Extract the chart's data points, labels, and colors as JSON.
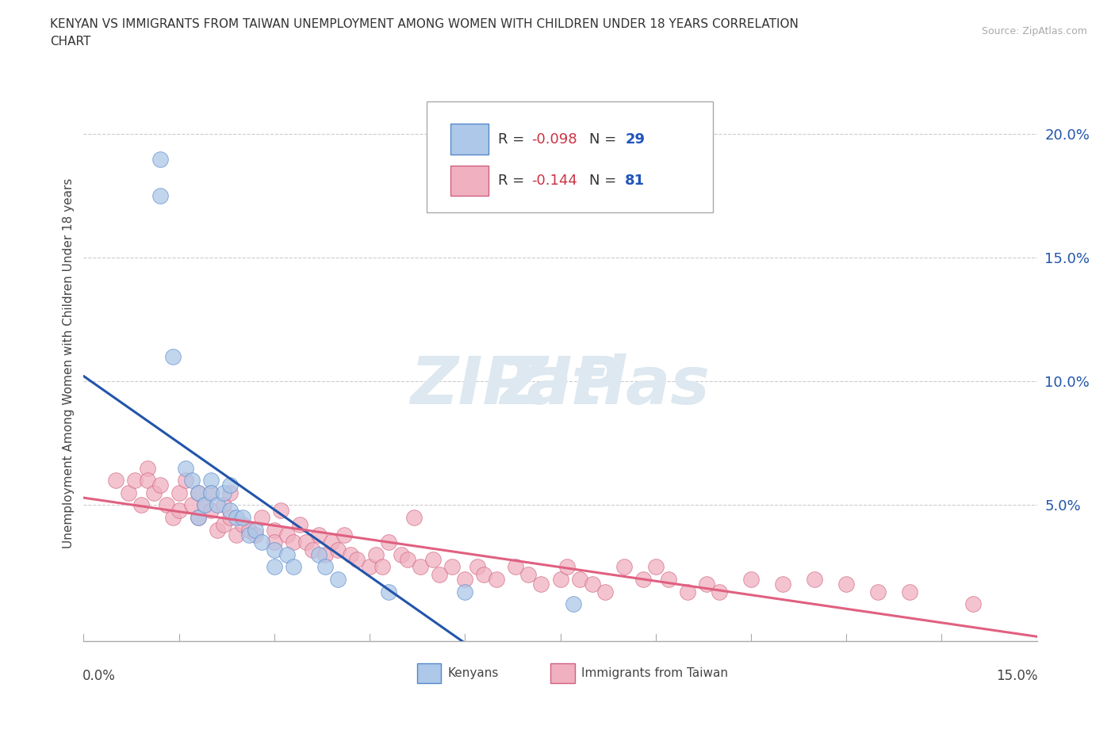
{
  "title_line1": "KENYAN VS IMMIGRANTS FROM TAIWAN UNEMPLOYMENT AMONG WOMEN WITH CHILDREN UNDER 18 YEARS CORRELATION",
  "title_line2": "CHART",
  "source": "Source: ZipAtlas.com",
  "xlabel_bottom_left": "0.0%",
  "xlabel_bottom_right": "15.0%",
  "ylabel": "Unemployment Among Women with Children Under 18 years",
  "ytick_labels": [
    "5.0%",
    "10.0%",
    "15.0%",
    "20.0%"
  ],
  "ytick_values": [
    0.05,
    0.1,
    0.15,
    0.2
  ],
  "xlim": [
    0.0,
    0.15
  ],
  "ylim": [
    -0.005,
    0.22
  ],
  "legend_r_kenyan": "-0.098",
  "legend_n_kenyan": "29",
  "legend_r_taiwan": "-0.144",
  "legend_n_taiwan": "81",
  "kenyan_color": "#adc8e8",
  "taiwan_color": "#f0b0c0",
  "kenyan_edge_color": "#5588cc",
  "taiwan_edge_color": "#d06080",
  "kenyan_line_color": "#2255aa",
  "taiwan_line_color": "#e06080",
  "dashed_line_color": "#99aabb",
  "legend_text_color_r": "#cc3344",
  "legend_text_color_n": "#2255bb",
  "watermark_color": "#dde8f0",
  "kenyan_x": [
    0.012,
    0.012,
    0.014,
    0.016,
    0.017,
    0.018,
    0.018,
    0.019,
    0.02,
    0.02,
    0.021,
    0.022,
    0.023,
    0.023,
    0.024,
    0.025,
    0.026,
    0.027,
    0.028,
    0.03,
    0.03,
    0.032,
    0.033,
    0.037,
    0.038,
    0.04,
    0.048,
    0.06,
    0.077
  ],
  "kenyan_y": [
    0.19,
    0.175,
    0.11,
    0.065,
    0.06,
    0.055,
    0.045,
    0.05,
    0.06,
    0.055,
    0.05,
    0.055,
    0.058,
    0.048,
    0.045,
    0.045,
    0.038,
    0.04,
    0.035,
    0.032,
    0.025,
    0.03,
    0.025,
    0.03,
    0.025,
    0.02,
    0.015,
    0.015,
    0.01
  ],
  "taiwan_x": [
    0.005,
    0.007,
    0.008,
    0.009,
    0.01,
    0.01,
    0.011,
    0.012,
    0.013,
    0.014,
    0.015,
    0.015,
    0.016,
    0.017,
    0.018,
    0.018,
    0.019,
    0.02,
    0.02,
    0.021,
    0.022,
    0.022,
    0.023,
    0.023,
    0.024,
    0.025,
    0.026,
    0.027,
    0.028,
    0.03,
    0.03,
    0.031,
    0.032,
    0.033,
    0.034,
    0.035,
    0.036,
    0.037,
    0.038,
    0.039,
    0.04,
    0.041,
    0.042,
    0.043,
    0.045,
    0.046,
    0.047,
    0.048,
    0.05,
    0.051,
    0.052,
    0.053,
    0.055,
    0.056,
    0.058,
    0.06,
    0.062,
    0.063,
    0.065,
    0.068,
    0.07,
    0.072,
    0.075,
    0.076,
    0.078,
    0.08,
    0.082,
    0.085,
    0.088,
    0.09,
    0.092,
    0.095,
    0.098,
    0.1,
    0.105,
    0.11,
    0.115,
    0.12,
    0.125,
    0.13,
    0.14
  ],
  "taiwan_y": [
    0.06,
    0.055,
    0.06,
    0.05,
    0.065,
    0.06,
    0.055,
    0.058,
    0.05,
    0.045,
    0.055,
    0.048,
    0.06,
    0.05,
    0.055,
    0.045,
    0.05,
    0.055,
    0.048,
    0.04,
    0.05,
    0.042,
    0.055,
    0.045,
    0.038,
    0.042,
    0.04,
    0.038,
    0.045,
    0.04,
    0.035,
    0.048,
    0.038,
    0.035,
    0.042,
    0.035,
    0.032,
    0.038,
    0.03,
    0.035,
    0.032,
    0.038,
    0.03,
    0.028,
    0.025,
    0.03,
    0.025,
    0.035,
    0.03,
    0.028,
    0.045,
    0.025,
    0.028,
    0.022,
    0.025,
    0.02,
    0.025,
    0.022,
    0.02,
    0.025,
    0.022,
    0.018,
    0.02,
    0.025,
    0.02,
    0.018,
    0.015,
    0.025,
    0.02,
    0.025,
    0.02,
    0.015,
    0.018,
    0.015,
    0.02,
    0.018,
    0.02,
    0.018,
    0.015,
    0.015,
    0.01
  ]
}
